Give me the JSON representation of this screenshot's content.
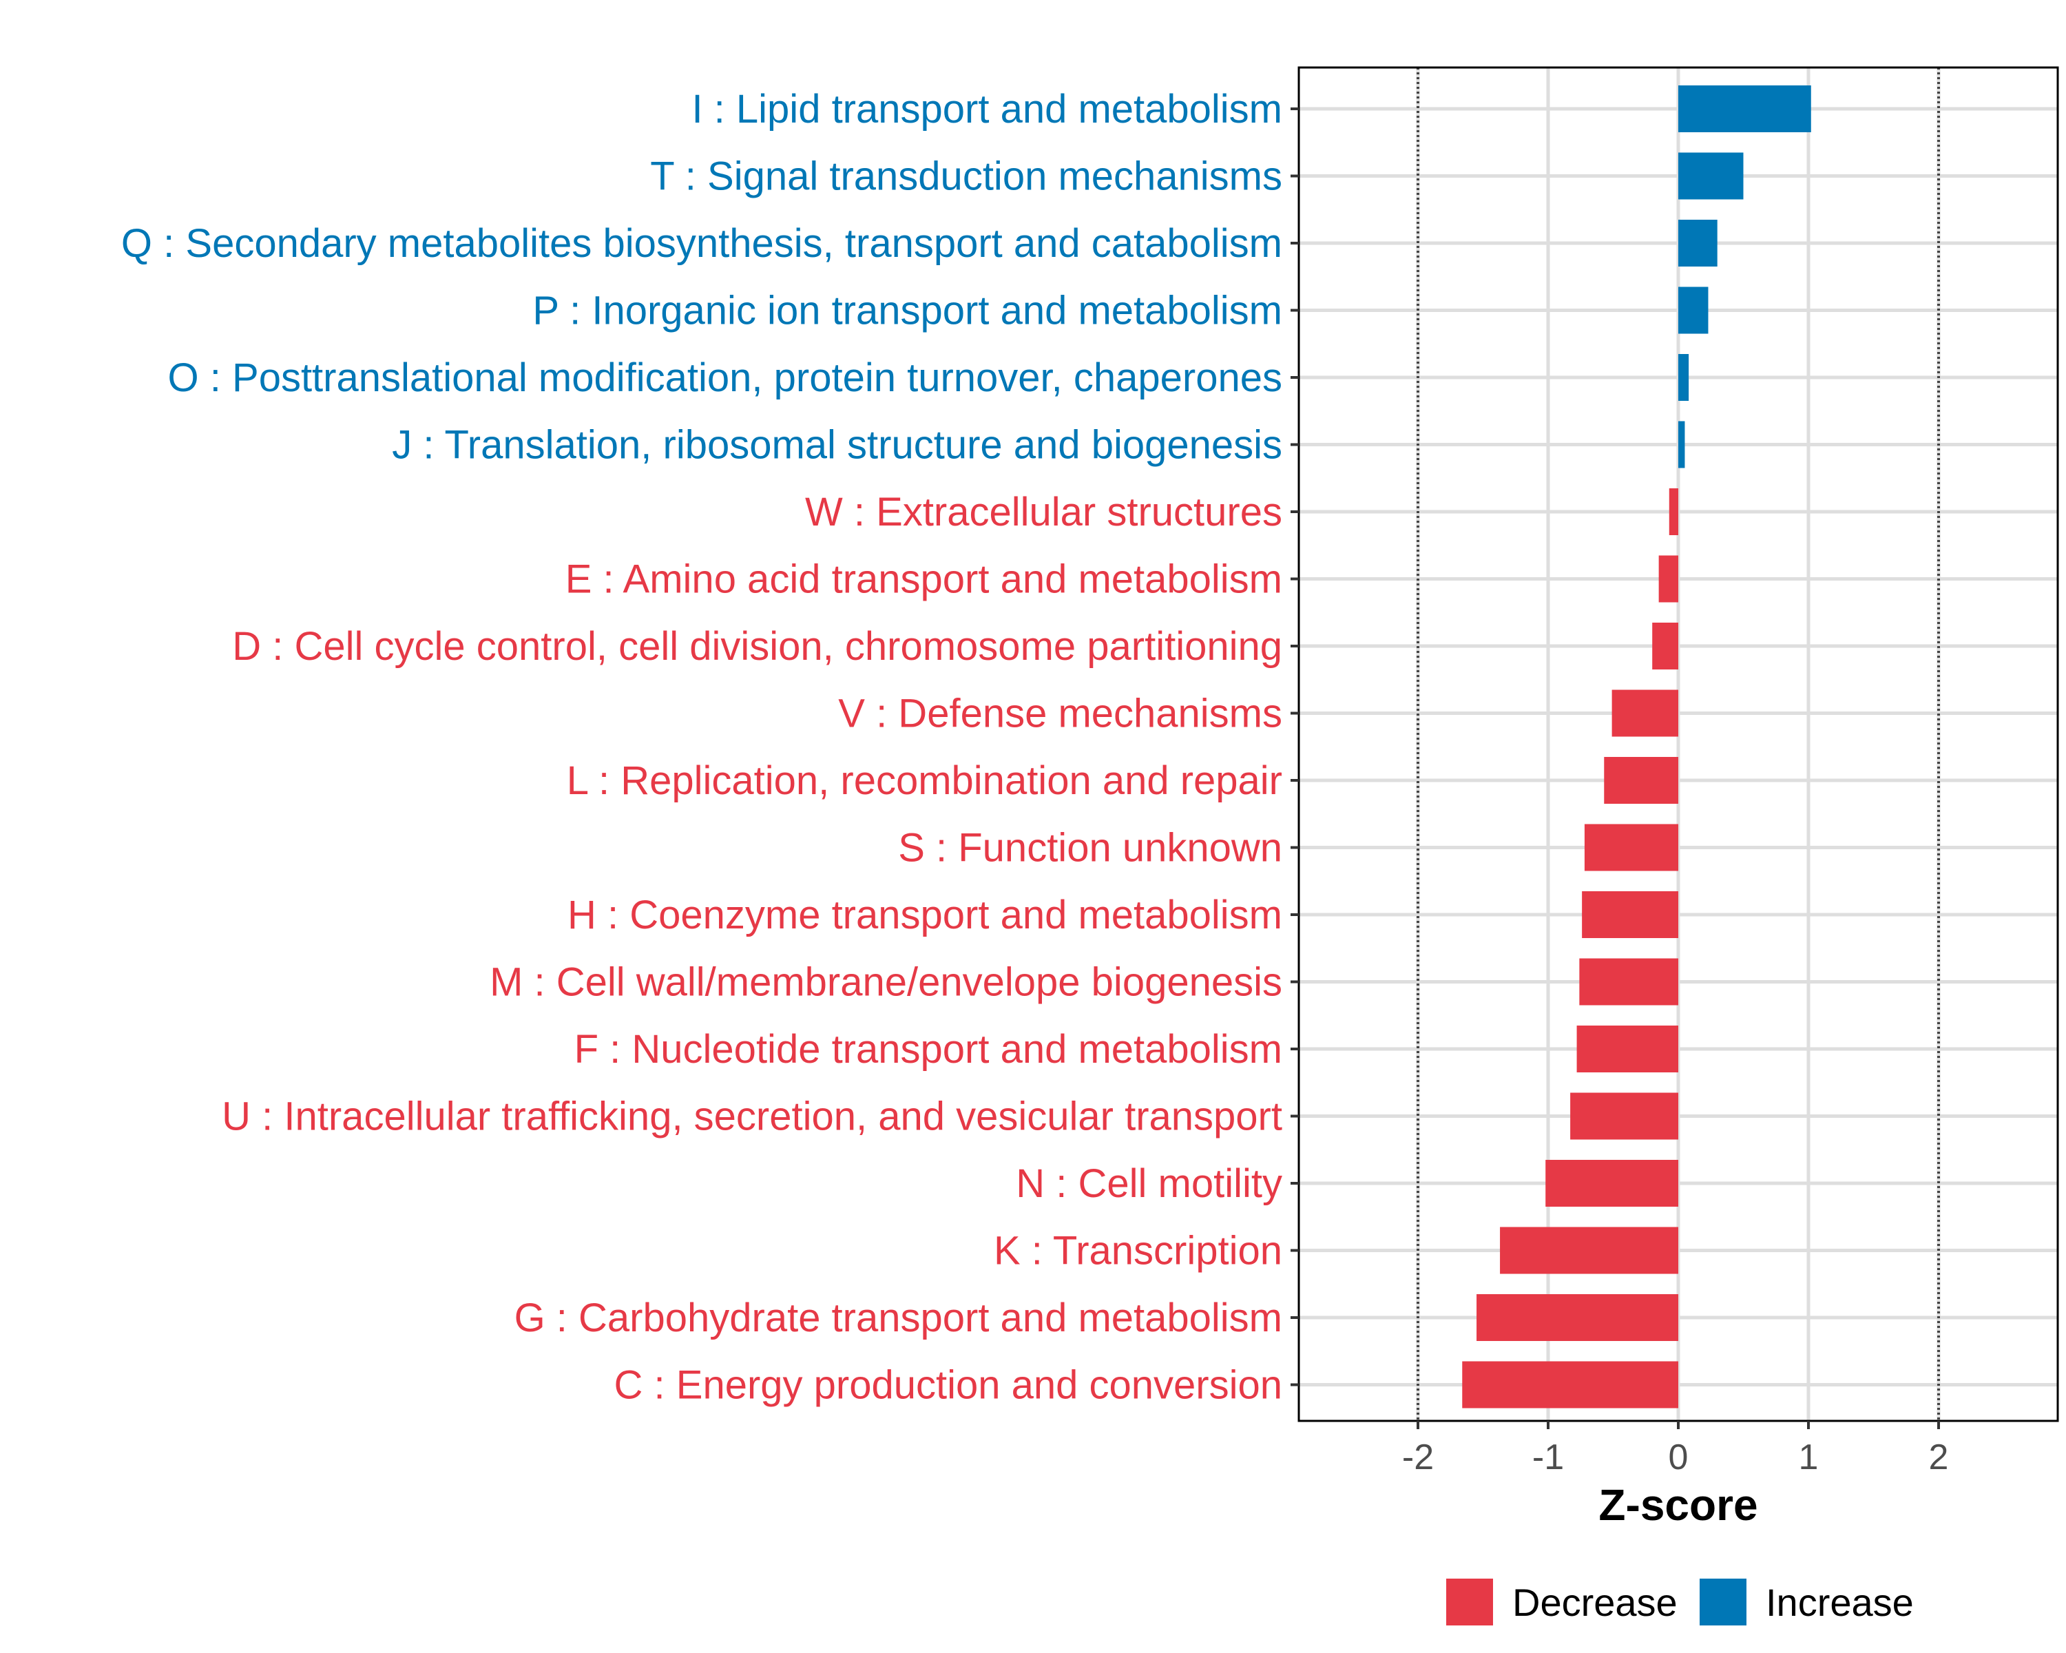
{
  "chart_data": {
    "type": "bar",
    "orientation": "horizontal",
    "xlabel": "Z-score",
    "ylabel": "",
    "xlim": [
      -2.9,
      2.9
    ],
    "x_ticks": [
      "-2",
      "-1",
      "0",
      "1",
      "2"
    ],
    "x_tick_values": [
      -2,
      -1,
      0,
      1,
      2
    ],
    "reference_lines": [
      -2,
      2
    ],
    "grid": true,
    "colors": {
      "Decrease": "#e63946",
      "Increase": "#0077b6"
    },
    "legend": {
      "position": "bottom",
      "items": [
        "Decrease",
        "Increase"
      ]
    },
    "categories": [
      "I : Lipid transport and metabolism",
      "T : Signal transduction mechanisms",
      "Q : Secondary metabolites biosynthesis, transport and catabolism",
      "P : Inorganic ion transport and metabolism",
      "O : Posttranslational modification, protein turnover, chaperones",
      "J : Translation, ribosomal structure and biogenesis",
      "W : Extracellular structures",
      "E : Amino acid transport and metabolism",
      "D : Cell cycle control, cell division, chromosome partitioning",
      "V : Defense mechanisms",
      "L : Replication, recombination and repair",
      "S : Function unknown",
      "H : Coenzyme transport and metabolism",
      "M : Cell wall/membrane/envelope biogenesis",
      "F : Nucleotide transport and metabolism",
      "U : Intracellular trafficking, secretion, and vesicular transport",
      "N : Cell motility",
      "K : Transcription",
      "G : Carbohydrate transport and metabolism",
      "C : Energy production and conversion"
    ],
    "values": [
      1.02,
      0.5,
      0.3,
      0.23,
      0.08,
      0.05,
      -0.07,
      -0.15,
      -0.2,
      -0.51,
      -0.57,
      -0.72,
      -0.74,
      -0.76,
      -0.78,
      -0.83,
      -1.02,
      -1.37,
      -1.55,
      -1.66
    ],
    "groups": [
      "Increase",
      "Increase",
      "Increase",
      "Increase",
      "Increase",
      "Increase",
      "Decrease",
      "Decrease",
      "Decrease",
      "Decrease",
      "Decrease",
      "Decrease",
      "Decrease",
      "Decrease",
      "Decrease",
      "Decrease",
      "Decrease",
      "Decrease",
      "Decrease",
      "Decrease"
    ]
  }
}
